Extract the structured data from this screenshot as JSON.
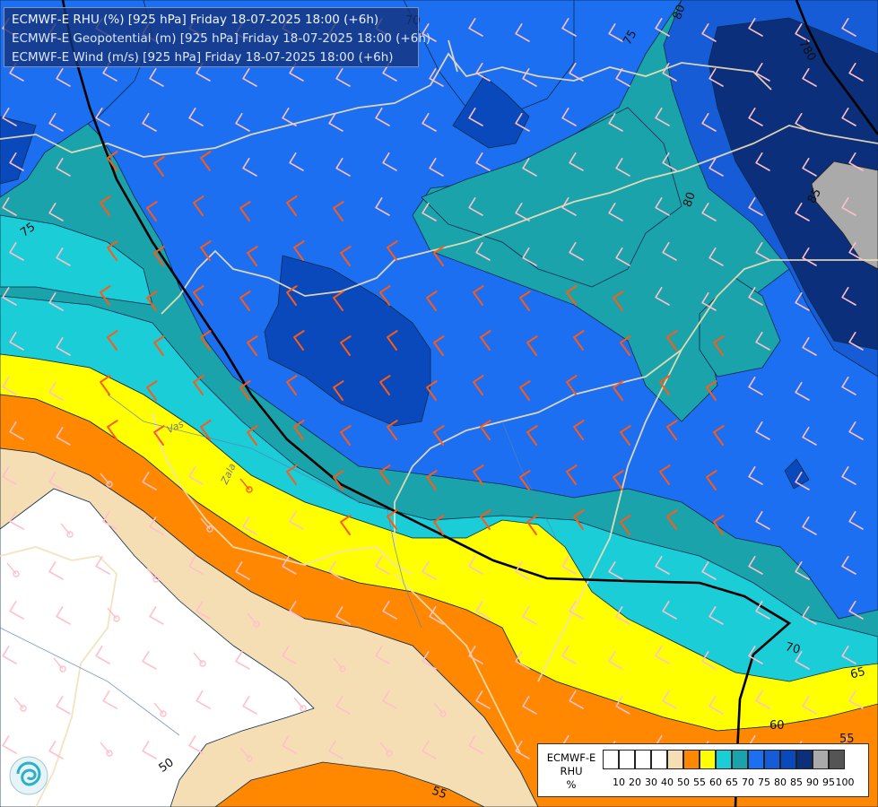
{
  "header": {
    "line1": "ECMWF-E RHU (%) [925 hPa] Friday 18-07-2025 18:00 (+6h)",
    "line2": "ECMWF-E Geopotential (m) [925 hPa] Friday 18-07-2025 18:00 (+6h)",
    "line3": "ECMWF-E Wind (m/s) [925 hPa] Friday 18-07-2025 18:00 (+6h)"
  },
  "legend": {
    "title_lines": [
      "ECMWF-E",
      "RHU",
      "%"
    ],
    "ticks": [
      "10",
      "20",
      "30",
      "40",
      "50",
      "55",
      "60",
      "65",
      "70",
      "75",
      "80",
      "85",
      "90",
      "95",
      "100"
    ],
    "colors": [
      "#ffffff",
      "#ffffff",
      "#ffffff",
      "#ffffff",
      "#f5deb3",
      "#ff8800",
      "#ffff00",
      "#1acdd6",
      "#1aa3aa",
      "#1c6ff0",
      "#155cd6",
      "#0a49bb",
      "#0b2f7a",
      "#aaaaaa",
      "#555555"
    ]
  },
  "contour_labels": {
    "rhu": [
      "70",
      "80",
      "75",
      "75",
      "70",
      "65",
      "60",
      "55",
      "50",
      "55",
      "80",
      "85"
    ],
    "geopotential": [
      "780",
      "780",
      "780"
    ]
  },
  "place_labels": [
    "Vas",
    "Zala"
  ],
  "colors": {
    "rhu_50": "#f5deb3",
    "rhu_55": "#ff8800",
    "rhu_60": "#ffff00",
    "rhu_65": "#1acdd6",
    "rhu_70": "#1aa3aa",
    "rhu_75": "#1c6ff0",
    "rhu_80": "#155cd6",
    "rhu_85": "#0a49bb",
    "rhu_90": "#0b2f7a",
    "rhu_95": "#aaaaaa",
    "wind_barb_light": "#ffc0cb",
    "wind_barb_strong": "#ff5a14",
    "border": "#f2e0b8",
    "geopotential_line": "#000000"
  },
  "icons": {
    "logo": "swirl-logo-icon"
  }
}
